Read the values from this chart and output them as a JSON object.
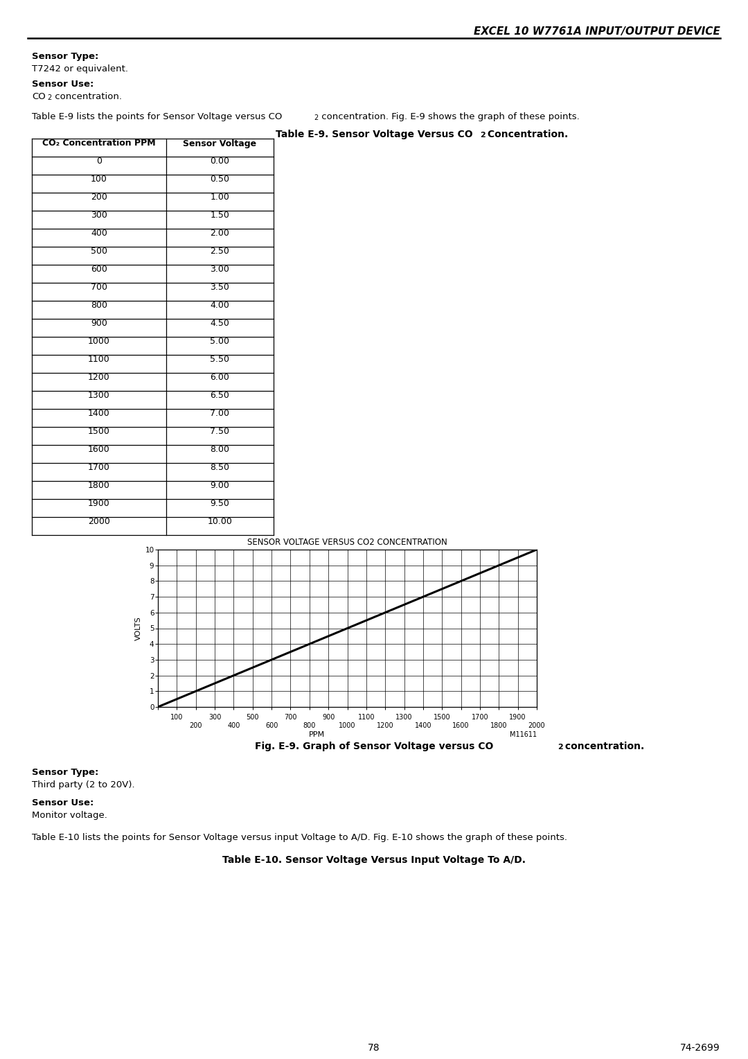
{
  "header_title": "EXCEL 10 W7761A INPUT/OUTPUT DEVICE",
  "sensor_type_1_label": "Sensor Type:",
  "sensor_type_1_value": "T7242 or equivalent.",
  "sensor_use_1_label": "Sensor Use:",
  "col1_header": "CO₂ Concentration PPM",
  "col2_header": "Sensor Voltage",
  "ppm_values": [
    0,
    100,
    200,
    300,
    400,
    500,
    600,
    700,
    800,
    900,
    1000,
    1100,
    1200,
    1300,
    1400,
    1500,
    1600,
    1700,
    1800,
    1900,
    2000
  ],
  "voltage_values": [
    0.0,
    0.5,
    1.0,
    1.5,
    2.0,
    2.5,
    3.0,
    3.5,
    4.0,
    4.5,
    5.0,
    5.5,
    6.0,
    6.5,
    7.0,
    7.5,
    8.0,
    8.5,
    9.0,
    9.5,
    10.0
  ],
  "graph_title": "SENSOR VOLTAGE VERSUS CO2 CONCENTRATION",
  "graph_ylabel": "VOLTS",
  "graph_xlabel": "PPM",
  "graph_note": "M11611",
  "sensor_type_2_label": "Sensor Type:",
  "sensor_type_2_value": "Third party (2 to 20V).",
  "sensor_use_2_label": "Sensor Use:",
  "sensor_use_2_value": "Monitor voltage.",
  "table2_title": "Table E-10. Sensor Voltage Versus Input Voltage To A/D.",
  "page_number": "78",
  "doc_number": "74-2699",
  "bg_color": "#ffffff",
  "text_color": "#000000"
}
